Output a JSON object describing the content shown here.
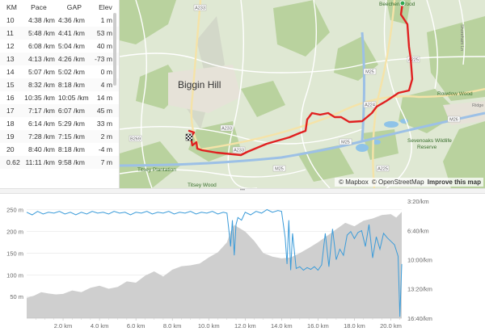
{
  "splits": {
    "headers": {
      "km": "KM",
      "pace": "Pace",
      "gap": "GAP",
      "elev": "Elev"
    },
    "rows": [
      {
        "km": "10",
        "pace": "4:38 /km",
        "gap": "4:36 /km",
        "elev": "1 m"
      },
      {
        "km": "11",
        "pace": "5:48 /km",
        "gap": "4:41 /km",
        "elev": "53 m"
      },
      {
        "km": "12",
        "pace": "6:08 /km",
        "gap": "5:04 /km",
        "elev": "40 m"
      },
      {
        "km": "13",
        "pace": "4:13 /km",
        "gap": "4:26 /km",
        "elev": "-73 m"
      },
      {
        "km": "14",
        "pace": "5:07 /km",
        "gap": "5:02 /km",
        "elev": "0 m"
      },
      {
        "km": "15",
        "pace": "8:32 /km",
        "gap": "8:18 /km",
        "elev": "4 m"
      },
      {
        "km": "16",
        "pace": "10:35 /km",
        "gap": "10:05 /km",
        "elev": "14 m"
      },
      {
        "km": "17",
        "pace": "7:17 /km",
        "gap": "6:07 /km",
        "elev": "45 m"
      },
      {
        "km": "18",
        "pace": "6:14 /km",
        "gap": "5:29 /km",
        "elev": "33 m"
      },
      {
        "km": "19",
        "pace": "7:28 /km",
        "gap": "7:15 /km",
        "elev": "2 m"
      },
      {
        "km": "20",
        "pace": "8:40 /km",
        "gap": "8:18 /km",
        "elev": "-4 m"
      },
      {
        "km": "0.62",
        "pace": "11:11 /km",
        "gap": "9:58 /km",
        "elev": "7 m"
      }
    ]
  },
  "map": {
    "places": {
      "biggin_hill": "Biggin Hill",
      "beechen_wood": "Beechen Wood",
      "rowdow_wood": "Rowdow Wood",
      "sevenoaks": "Sevenoaks Wildlife Reserve",
      "titsey_plantation": "Titsey Plantation",
      "titsey_wood": "Titsey Wood",
      "shoreham": "Shoreham Ln",
      "ridge": "Ridge"
    },
    "roads": [
      "A233",
      "A233",
      "A233",
      "B269",
      "M25",
      "M25",
      "M25",
      "A224",
      "A225",
      "A225",
      "M26"
    ],
    "route_color": "#e02020",
    "attribution": {
      "mapbox": "© Mapbox",
      "osm": "© OpenStreetMap",
      "improve": "Improve this map"
    }
  },
  "chart": {
    "x_ticks": [
      "2.0 km",
      "4.0 km",
      "6.0 km",
      "8.0 km",
      "10.0 km",
      "12.0 km",
      "14.0 km",
      "16.0 km",
      "18.0 km",
      "20.0 km"
    ],
    "elev_ticks": [
      "250 m",
      "200 m",
      "150 m",
      "100 m",
      "50 m"
    ],
    "pace_ticks": [
      "3:20/km",
      "6:40/km",
      "10:00/km",
      "13:20/km",
      "16:40/km"
    ],
    "pace_color": "#3a9bd9",
    "elevation_fill": "#cfcfcf"
  },
  "chart_data": {
    "type": "area",
    "x_range_km": [
      0,
      20.6
    ],
    "series": [
      {
        "name": "",
        "kind": "elevation",
        "unit": "m",
        "x": [
          0,
          0.4,
          0.8,
          1.2,
          1.6,
          2.0,
          2.5,
          3.0,
          3.5,
          4.0,
          4.5,
          5.0,
          5.5,
          6.0,
          6.5,
          7.0,
          7.5,
          8.0,
          8.5,
          9.0,
          9.5,
          10.0,
          10.5,
          11.0,
          11.2,
          11.4,
          11.6,
          12.0,
          12.5,
          13.0,
          13.5,
          14.0,
          14.5,
          15.0,
          15.5,
          16.0,
          16.5,
          17.0,
          17.5,
          18.0,
          18.5,
          19.0,
          19.5,
          20.0,
          20.3,
          20.6
        ],
        "y": [
          47,
          52,
          60,
          57,
          55,
          56,
          64,
          60,
          70,
          75,
          68,
          72,
          85,
          82,
          98,
          108,
          96,
          112,
          120,
          122,
          126,
          140,
          152,
          175,
          200,
          215,
          210,
          200,
          178,
          150,
          142,
          138,
          140,
          150,
          162,
          175,
          190,
          205,
          220,
          212,
          225,
          230,
          238,
          240,
          232,
          245
        ]
      },
      {
        "name": "",
        "kind": "pace",
        "unit": "min/km",
        "x": [
          0,
          0.3,
          0.6,
          0.9,
          1.2,
          1.5,
          1.8,
          2.1,
          2.4,
          2.7,
          3.0,
          3.3,
          3.6,
          3.9,
          4.2,
          4.5,
          4.8,
          5.1,
          5.4,
          5.7,
          6.0,
          6.3,
          6.6,
          6.9,
          7.2,
          7.5,
          7.8,
          8.1,
          8.4,
          8.7,
          9.0,
          9.3,
          9.6,
          9.9,
          10.2,
          10.5,
          10.8,
          11.0,
          11.1,
          11.2,
          11.3,
          11.4,
          11.5,
          11.6,
          11.8,
          12.0,
          12.3,
          12.6,
          12.9,
          13.2,
          13.5,
          13.8,
          14.0,
          14.2,
          14.3,
          14.4,
          14.5,
          14.6,
          14.8,
          15.0,
          15.2,
          15.4,
          15.6,
          15.8,
          16.0,
          16.2,
          16.4,
          16.6,
          16.8,
          17.0,
          17.2,
          17.4,
          17.6,
          17.8,
          18.0,
          18.2,
          18.4,
          18.6,
          18.8,
          19.0,
          19.2,
          19.4,
          19.6,
          19.8,
          20.0,
          20.2,
          20.4,
          20.5,
          20.6
        ],
        "y": [
          4.6,
          4.9,
          4.5,
          4.8,
          4.6,
          4.7,
          4.5,
          4.8,
          4.6,
          4.9,
          4.6,
          4.8,
          4.5,
          4.7,
          4.6,
          4.8,
          4.5,
          4.7,
          4.6,
          4.9,
          4.6,
          4.7,
          4.5,
          4.8,
          4.6,
          4.7,
          4.5,
          4.8,
          4.6,
          4.7,
          4.5,
          4.8,
          4.6,
          4.7,
          4.5,
          4.8,
          4.6,
          4.7,
          6.5,
          8.5,
          5.5,
          9.5,
          6.0,
          5.2,
          5.5,
          4.6,
          4.9,
          4.5,
          4.7,
          4.3,
          4.6,
          4.4,
          4.5,
          7.5,
          10.5,
          5.5,
          11.2,
          7.0,
          11.0,
          10.8,
          11.2,
          10.9,
          11.1,
          10.8,
          11.2,
          10.6,
          7.0,
          10.8,
          6.5,
          10.0,
          8.8,
          9.5,
          7.2,
          6.8,
          7.6,
          6.9,
          6.7,
          8.5,
          6.0,
          9.8,
          7.4,
          8.8,
          7.0,
          7.5,
          7.9,
          8.3,
          9.6,
          16.5,
          10.5
        ]
      }
    ],
    "y_left": {
      "label": "",
      "unit": "m",
      "range": [
        0,
        270
      ]
    },
    "y_right": {
      "label": "",
      "unit": "min/km",
      "range": [
        3.333,
        16.667
      ]
    },
    "grid": true
  }
}
